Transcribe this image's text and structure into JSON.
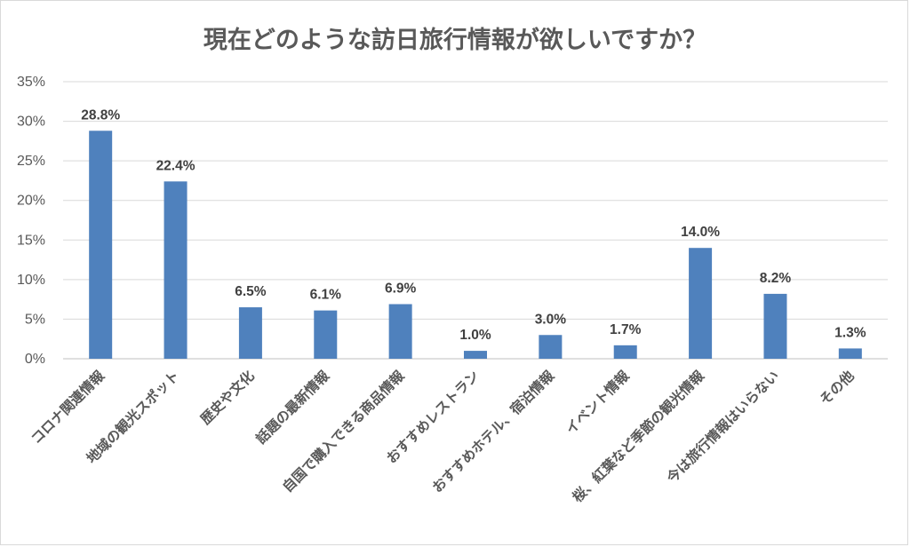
{
  "chart_data": {
    "type": "bar",
    "title": "現在どのような訪日旅行情報が欲しいですか？",
    "categories": [
      "コロナ関連情報",
      "地域の観光スポット",
      "歴史や文化",
      "話題の最新情報",
      "自国で購入できる商品情報",
      "おすすめレストラン",
      "おすすめホテル、宿泊情報",
      "イベント情報",
      "桜、紅葉など季節の観光情報",
      "今は旅行情報はいらない",
      "その他"
    ],
    "values": [
      28.8,
      22.4,
      6.5,
      6.1,
      6.9,
      1.0,
      3.0,
      1.7,
      14.0,
      8.2,
      1.3
    ],
    "value_labels": [
      "28.8%",
      "22.4%",
      "6.5%",
      "6.1%",
      "6.9%",
      "1.0%",
      "3.0%",
      "1.7%",
      "14.0%",
      "8.2%",
      "1.3%"
    ],
    "yticks": [
      0,
      5,
      10,
      15,
      20,
      25,
      30,
      35
    ],
    "ytick_labels": [
      "0%",
      "5%",
      "10%",
      "15%",
      "20%",
      "25%",
      "30%",
      "35%"
    ],
    "ylim": [
      0,
      35
    ],
    "xlabel": "",
    "ylabel": "",
    "grid": true,
    "legend": "none",
    "bar_color": "#4f81bd"
  }
}
